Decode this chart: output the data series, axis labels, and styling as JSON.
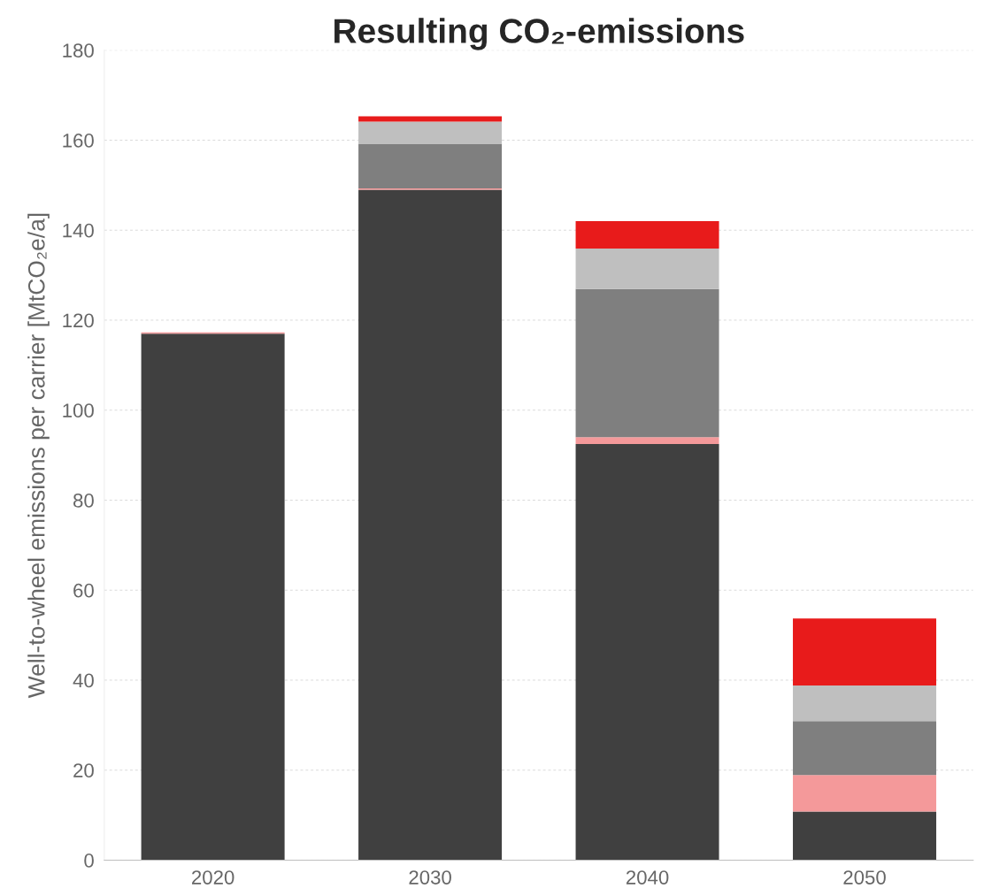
{
  "chart_data": {
    "type": "bar",
    "title": "Resulting CO₂-emissions",
    "ylabel": "Well-to-wheel emissions per carrier [MtCO₂e/a]",
    "categories": [
      "2020",
      "2030",
      "2040",
      "2050"
    ],
    "stacked": true,
    "series": [
      {
        "color": "#404040",
        "values": [
          117,
          149,
          92.5,
          10.8
        ]
      },
      {
        "color": "#f4999a",
        "values": [
          0.3,
          0.3,
          1.5,
          8.1
        ]
      },
      {
        "color": "#7f7f7f",
        "values": [
          0,
          9.9,
          32.9,
          12
        ]
      },
      {
        "color": "#bfbfbf",
        "values": [
          0,
          4.9,
          9,
          7.9
        ]
      },
      {
        "color": "#e81b1b",
        "values": [
          0,
          1.2,
          6.1,
          14.9
        ]
      }
    ],
    "ylim": [
      0,
      180
    ],
    "yticks": [
      0,
      20,
      40,
      60,
      80,
      100,
      120,
      140,
      160,
      180
    ],
    "grid": "y"
  }
}
